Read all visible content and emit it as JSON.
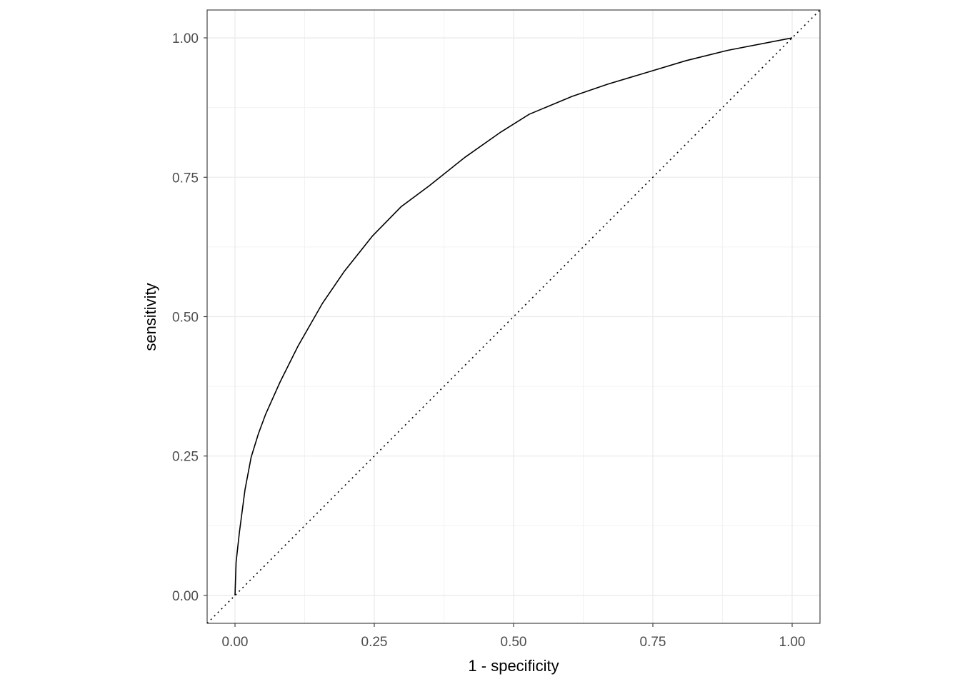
{
  "chart_data": {
    "type": "line",
    "title": "",
    "xlabel": "1 - specificity",
    "ylabel": "sensitivity",
    "xlim": [
      -0.05,
      1.05
    ],
    "ylim": [
      -0.05,
      1.05
    ],
    "x_ticks": [
      "0.00",
      "0.25",
      "0.50",
      "0.75",
      "1.00"
    ],
    "y_ticks": [
      "0.00",
      "0.25",
      "0.50",
      "0.75",
      "1.00"
    ],
    "grid": true,
    "series": [
      {
        "style": "solid",
        "color": "#000000",
        "x": [
          0,
          0.002,
          0.008,
          0.018,
          0.029,
          0.042,
          0.055,
          0.081,
          0.113,
          0.157,
          0.196,
          0.247,
          0.298,
          0.349,
          0.413,
          0.477,
          0.528,
          0.605,
          0.669,
          0.746,
          0.809,
          0.886,
          1.0
        ],
        "y": [
          0,
          0.06,
          0.114,
          0.19,
          0.248,
          0.29,
          0.325,
          0.383,
          0.447,
          0.524,
          0.581,
          0.645,
          0.697,
          0.735,
          0.786,
          0.831,
          0.863,
          0.895,
          0.917,
          0.94,
          0.959,
          0.978,
          1.0
        ]
      },
      {
        "style": "dotted",
        "color": "#000000",
        "x": [
          -0.05,
          1.05
        ],
        "y": [
          -0.05,
          1.05
        ]
      }
    ]
  }
}
